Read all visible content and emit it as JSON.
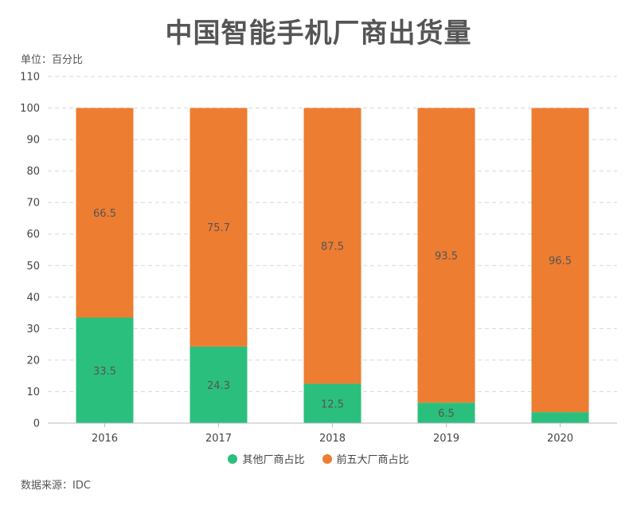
{
  "colors": {
    "others": "#2bbf7d",
    "top5": "#ed7d31"
  },
  "chart_data": {
    "type": "bar",
    "stacked": true,
    "title": "中国智能手机厂商出货量",
    "ylabel": "单位：百分比",
    "xlabel": "",
    "categories": [
      "2016",
      "2017",
      "2018",
      "2019",
      "2020"
    ],
    "ylim": [
      0,
      110
    ],
    "yticks": [
      0,
      10,
      20,
      30,
      40,
      50,
      60,
      70,
      80,
      90,
      100,
      110
    ],
    "series": [
      {
        "name": "其他厂商占比",
        "values": [
          33.5,
          24.3,
          12.5,
          6.5,
          3.5
        ],
        "labels": [
          "33.5",
          "24.3",
          "12.5",
          "6.5",
          ""
        ]
      },
      {
        "name": "前五大厂商占比",
        "values": [
          66.5,
          75.7,
          87.5,
          93.5,
          96.5
        ],
        "labels": [
          "66.5",
          "75.7",
          "87.5",
          "93.5",
          "96.5"
        ]
      }
    ],
    "grid": true,
    "legend_position": "bottom",
    "source": "数据来源：IDC"
  }
}
